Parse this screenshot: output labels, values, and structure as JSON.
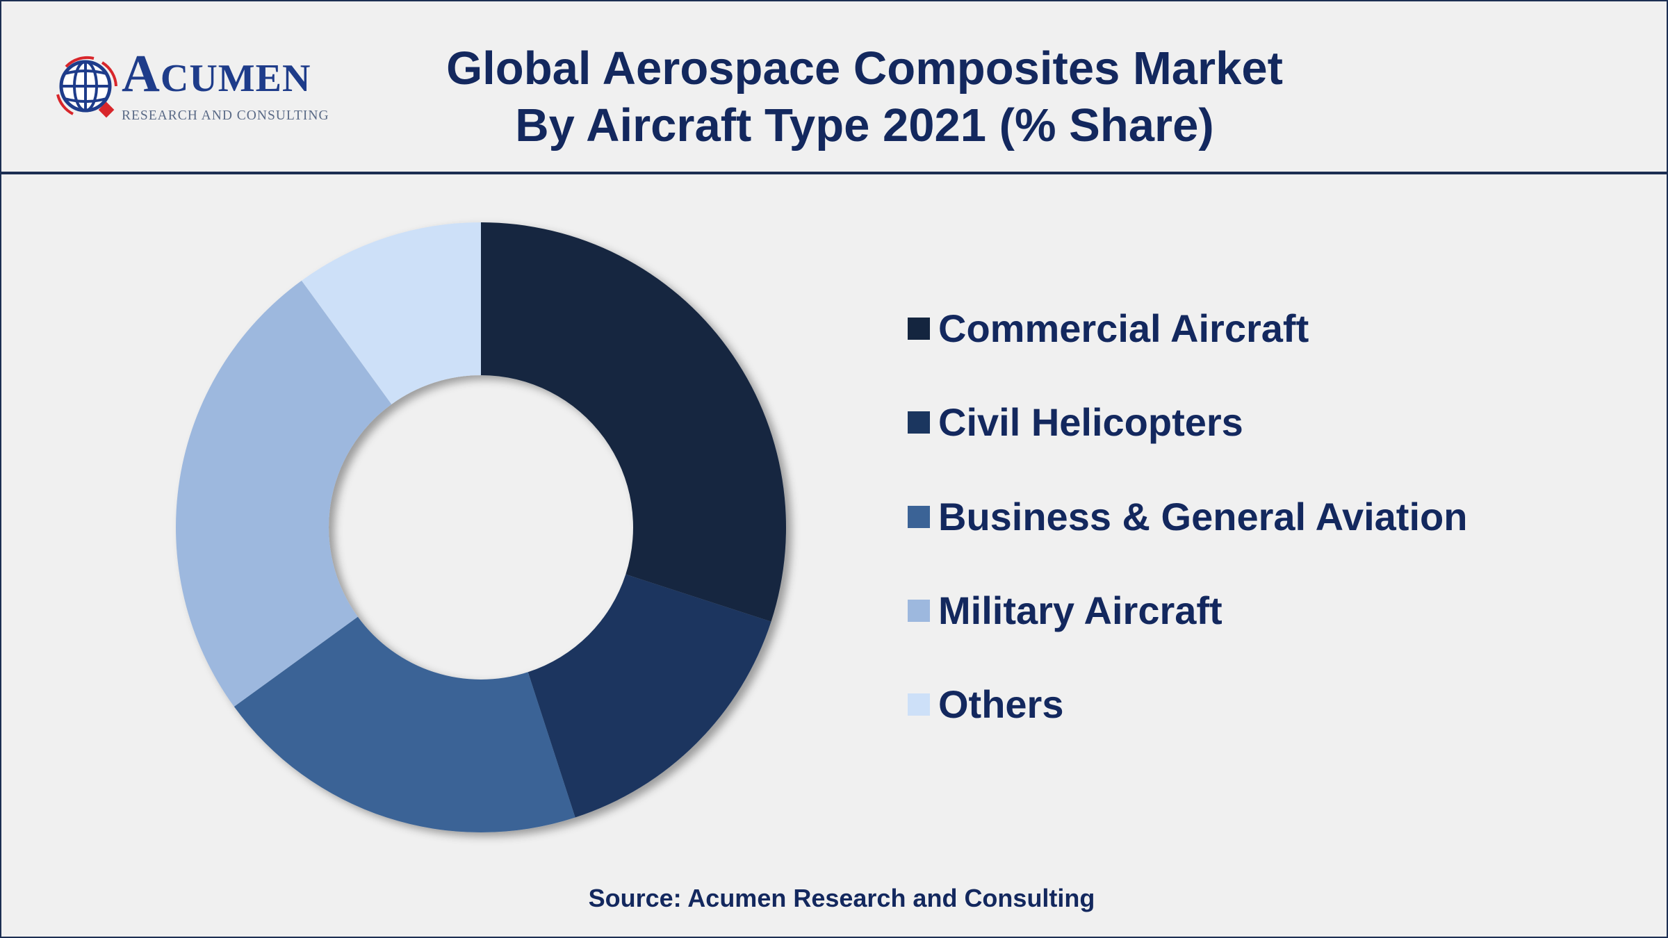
{
  "logo": {
    "name_initial": "A",
    "name_rest": "CUMEN",
    "tagline": "RESEARCH AND CONSULTING"
  },
  "chart_data": {
    "type": "pie",
    "variant": "donut",
    "title": "Global Aerospace Composites Market",
    "subtitle": "By Aircraft Type 2021 (% Share)",
    "categories": [
      "Commercial Aircraft",
      "Civil Helicopters",
      "Business & General Aviation",
      "Military Aircraft",
      "Others"
    ],
    "values": [
      30,
      15,
      20,
      25,
      10
    ],
    "unit": "%",
    "colors": [
      "#14253f",
      "#1b365f",
      "#3b6396",
      "#9db8de",
      "#cde0f8"
    ],
    "legend_position": "right"
  },
  "source": "Source: Acumen Research and Consulting",
  "colors": {
    "text": "#13285e",
    "border": "#1c2e52",
    "background": "#f0f0f0"
  }
}
